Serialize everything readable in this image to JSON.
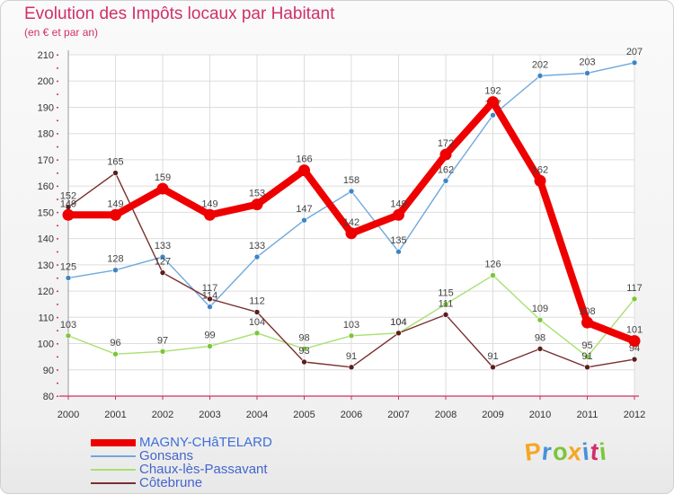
{
  "header": {
    "title": "Evolution des Impôts locaux par Habitant",
    "subtitle": "(en € et par an)"
  },
  "chart_data": {
    "type": "line",
    "title": "Evolution des Impôts locaux par Habitant",
    "subtitle": "(en € et par an)",
    "xlabel": "",
    "ylabel": "",
    "x": [
      2000,
      2001,
      2002,
      2003,
      2004,
      2005,
      2006,
      2007,
      2008,
      2009,
      2010,
      2011,
      2012
    ],
    "y_ticks": [
      80,
      90,
      100,
      110,
      120,
      130,
      140,
      150,
      160,
      170,
      180,
      190,
      200,
      210
    ],
    "ylim": [
      80,
      210
    ],
    "grid": true,
    "legend": "bottom-left",
    "series": [
      {
        "name": "Gonsans",
        "color": "#6fa8dc",
        "marker": "#3d85c6",
        "values": [
          125,
          128,
          133,
          114,
          133,
          147,
          158,
          135,
          162,
          187,
          202,
          203,
          207
        ]
      },
      {
        "name": "Chaux-lès-Passavant",
        "color": "#a8e070",
        "marker": "#7cc63a",
        "values": [
          103,
          96,
          97,
          99,
          104,
          98,
          103,
          104,
          115,
          126,
          109,
          95,
          117
        ]
      },
      {
        "name": "Côtebrune",
        "color": "#7a2e2e",
        "marker": "#5a1e1e",
        "values": [
          152,
          165,
          127,
          117,
          112,
          93,
          91,
          104,
          111,
          91,
          98,
          91,
          94
        ]
      },
      {
        "name": "MAGNY-CHâTELARD",
        "color": "#ee0000",
        "marker": "#ee0000",
        "values": [
          149,
          149,
          159,
          149,
          153,
          166,
          142,
          149,
          172,
          192,
          162,
          108,
          101
        ]
      }
    ],
    "legend_order": [
      "MAGNY-CHâTELARD",
      "Gonsans",
      "Chaux-lès-Passavant",
      "Côtebrune"
    ]
  },
  "logo": {
    "letters": [
      "P",
      "r",
      "o",
      "x",
      "i",
      "t",
      "i"
    ],
    "colors": [
      "#f5a623",
      "#4a90d9",
      "#7cc63a",
      "#f5a623",
      "#4a90d9",
      "#d0306a",
      "#7cc63a"
    ]
  }
}
